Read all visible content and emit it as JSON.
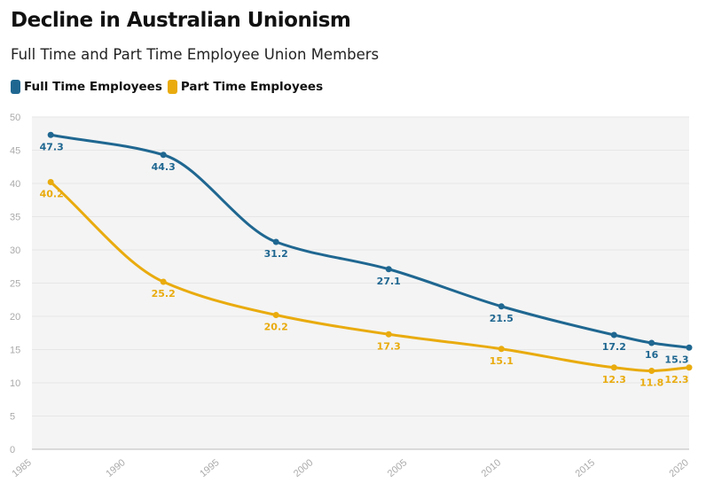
{
  "title": "Decline in Australian Unionism",
  "subtitle": "Full Time and Part Time Employee Union Members",
  "colors": {
    "full_time": "#1f6791",
    "part_time": "#e9ab0e",
    "plot_bg": "#f4f4f4",
    "grid": "#e6e6e6"
  },
  "chart_data": {
    "type": "line",
    "title": "Decline in Australian Unionism",
    "subtitle": "Full Time and Part Time Employee Union Members",
    "xlabel": "",
    "ylabel": "",
    "xlim": [
      1985,
      2020
    ],
    "ylim": [
      0,
      50
    ],
    "x_ticks": [
      "1985",
      "1990",
      "1995",
      "2000",
      "2005",
      "2010",
      "2015",
      "2020"
    ],
    "y_ticks": [
      "0",
      "5",
      "10",
      "15",
      "20",
      "25",
      "30",
      "35",
      "40",
      "45",
      "50"
    ],
    "grid": true,
    "legend_position": "top-left",
    "series": [
      {
        "name": "Full Time Employees",
        "color": "#1f6791",
        "x": [
          1986,
          1992,
          1998,
          2004,
          2010,
          2016,
          2018,
          2020
        ],
        "values": [
          47.3,
          44.3,
          31.2,
          27.1,
          21.5,
          17.2,
          16,
          15.3
        ],
        "labels": [
          "47.3",
          "44.3",
          "31.2",
          "27.1",
          "21.5",
          "17.2",
          "16",
          "15.3"
        ]
      },
      {
        "name": "Part Time Employees",
        "color": "#e9ab0e",
        "x": [
          1986,
          1992,
          1998,
          2004,
          2010,
          2016,
          2018,
          2020
        ],
        "values": [
          40.2,
          25.2,
          20.2,
          17.3,
          15.1,
          12.3,
          11.8,
          12.3
        ],
        "labels": [
          "40.2",
          "25.2",
          "20.2",
          "17.3",
          "15.1",
          "12.3",
          "11.8",
          "12.3"
        ]
      }
    ]
  }
}
